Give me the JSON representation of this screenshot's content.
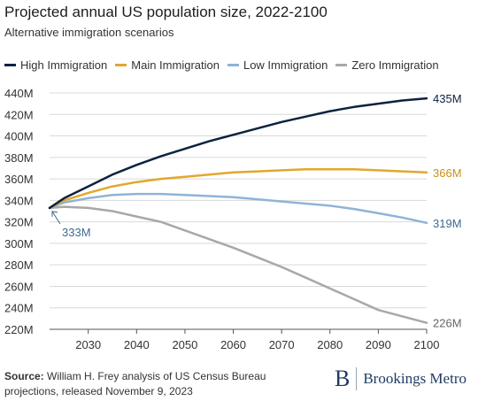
{
  "header": {
    "title": "Projected annual US population size, 2022-2100",
    "subtitle": "Alternative immigration scenarios"
  },
  "footer": {
    "source_label": "Source:",
    "source_text": "William H. Frey analysis of US Census Bureau projections, released November 9, 2023",
    "brand_mark": "B",
    "brand_name": "Brookings Metro"
  },
  "chart_data": {
    "type": "line",
    "title": "Projected annual US population size, 2022-2100",
    "subtitle": "Alternative immigration scenarios",
    "xlabel": "",
    "ylabel": "",
    "xlim": [
      2022,
      2100
    ],
    "ylim": [
      220,
      440
    ],
    "x_ticks": [
      2030,
      2040,
      2050,
      2060,
      2070,
      2080,
      2090,
      2100
    ],
    "y_ticks": [
      220,
      240,
      260,
      280,
      300,
      320,
      340,
      360,
      380,
      400,
      420,
      440
    ],
    "y_tick_labels": [
      "220M",
      "240M",
      "260M",
      "280M",
      "300M",
      "320M",
      "340M",
      "360M",
      "380M",
      "400M",
      "420M",
      "440M"
    ],
    "grid": "horizontal",
    "legend_position": "top-left",
    "start_annotation": {
      "x": 2022,
      "y": 333,
      "label": "333M"
    },
    "series": [
      {
        "name": "High Immigration",
        "color": "#0d2240",
        "end_label": "435M",
        "x": [
          2022,
          2025,
          2030,
          2035,
          2040,
          2045,
          2050,
          2055,
          2060,
          2065,
          2070,
          2075,
          2080,
          2085,
          2090,
          2095,
          2100
        ],
        "y": [
          333,
          342,
          353,
          364,
          373,
          381,
          388,
          395,
          401,
          407,
          413,
          418,
          423,
          427,
          430,
          433,
          435
        ]
      },
      {
        "name": "Main Immigration",
        "color": "#e3a72f",
        "end_label": "366M",
        "x": [
          2022,
          2025,
          2030,
          2035,
          2040,
          2045,
          2050,
          2055,
          2060,
          2065,
          2070,
          2075,
          2080,
          2085,
          2090,
          2095,
          2100
        ],
        "y": [
          333,
          340,
          347,
          353,
          357,
          360,
          362,
          364,
          366,
          367,
          368,
          369,
          369,
          369,
          368,
          367,
          366
        ]
      },
      {
        "name": "Low Immigration",
        "color": "#8fb4d6",
        "end_label": "319M",
        "x": [
          2022,
          2025,
          2030,
          2035,
          2040,
          2045,
          2050,
          2055,
          2060,
          2065,
          2070,
          2075,
          2080,
          2085,
          2090,
          2095,
          2100
        ],
        "y": [
          333,
          338,
          342,
          345,
          346,
          346,
          345,
          344,
          343,
          341,
          339,
          337,
          335,
          332,
          328,
          324,
          319
        ]
      },
      {
        "name": "Zero Immigration",
        "color": "#a8a8a8",
        "end_label": "226M",
        "x": [
          2022,
          2025,
          2030,
          2035,
          2040,
          2045,
          2050,
          2055,
          2060,
          2065,
          2070,
          2075,
          2080,
          2085,
          2090,
          2095,
          2100
        ],
        "y": [
          333,
          334,
          333,
          330,
          325,
          320,
          312,
          304,
          296,
          287,
          278,
          268,
          258,
          248,
          238,
          232,
          226
        ]
      }
    ]
  }
}
